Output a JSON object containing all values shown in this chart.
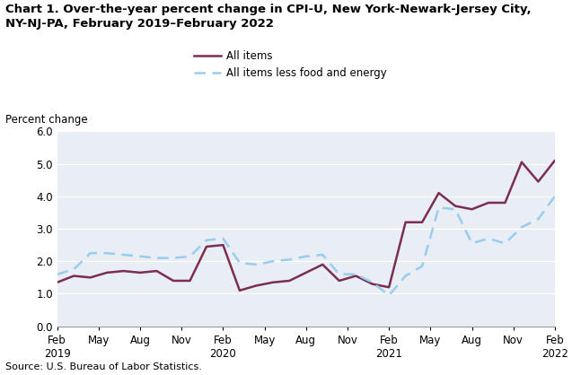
{
  "title_line1": "Chart 1. Over-the-year percent change in CPI-U, New York-Newark-Jersey City,",
  "title_line2": "NY-NJ-PA, February 2019–February 2022",
  "ylabel": "Percent change",
  "source": "Source: U.S. Bureau of Labor Statistics.",
  "ylim": [
    0.0,
    6.0
  ],
  "yticks": [
    0.0,
    1.0,
    2.0,
    3.0,
    4.0,
    5.0,
    6.0
  ],
  "x_tick_labels": [
    "Feb\n2019",
    "May",
    "Aug",
    "Nov",
    "Feb\n2020",
    "May",
    "Aug",
    "Nov",
    "Feb\n2021",
    "May",
    "Aug",
    "Nov",
    "Feb\n2022"
  ],
  "x_tick_positions": [
    0,
    3,
    6,
    9,
    12,
    15,
    18,
    21,
    24,
    27,
    30,
    33,
    36
  ],
  "all_items": [
    1.35,
    1.55,
    1.5,
    1.65,
    1.7,
    1.65,
    1.7,
    1.4,
    1.4,
    2.45,
    2.5,
    1.1,
    1.25,
    1.35,
    1.4,
    1.65,
    1.9,
    1.4,
    1.55,
    1.3,
    1.2,
    3.2,
    3.2,
    4.1,
    3.7,
    3.6,
    3.8,
    3.8,
    5.05,
    4.45,
    5.1
  ],
  "all_items_less": [
    1.6,
    1.75,
    2.25,
    2.25,
    2.2,
    2.15,
    2.1,
    2.1,
    2.15,
    2.65,
    2.7,
    1.95,
    1.9,
    2.0,
    2.05,
    2.15,
    2.2,
    1.6,
    1.6,
    1.35,
    0.95,
    1.55,
    1.85,
    3.65,
    3.6,
    2.55,
    2.7,
    2.55,
    3.05,
    3.3,
    4.0
  ],
  "all_items_color": "#7B2D52",
  "all_items_less_color": "#99CCEE",
  "background_color": "#E8EEF4"
}
